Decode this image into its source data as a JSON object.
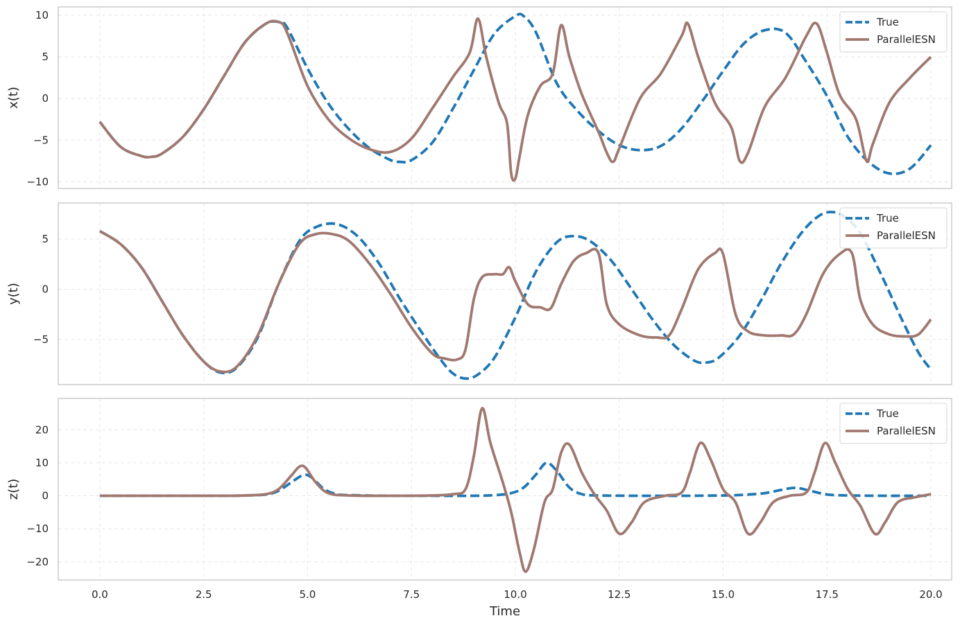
{
  "chart_data": [
    {
      "type": "line",
      "ylabel": "x(t)",
      "xlim": [
        -1.0,
        20.5
      ],
      "ylim": [
        -10.8,
        11.0
      ],
      "yticks": [
        10,
        5,
        0,
        -5,
        -10
      ],
      "ytick_labels": [
        "10",
        "5",
        "0",
        "−5",
        "−10"
      ],
      "grid": true,
      "legend": "top-right",
      "series": [
        {
          "name": "True",
          "style": "dashed",
          "color": "#1f77b4",
          "x": [
            0.0,
            0.5,
            1.0,
            1.25,
            1.5,
            2.0,
            2.5,
            3.0,
            3.5,
            4.0,
            4.3,
            4.5,
            5.0,
            5.5,
            6.0,
            6.5,
            7.0,
            7.2,
            7.5,
            8.0,
            8.5,
            9.0,
            9.5,
            10.0,
            10.2,
            10.5,
            11.0,
            11.5,
            12.0,
            12.5,
            13.0,
            13.5,
            14.0,
            14.5,
            15.0,
            15.5,
            16.0,
            16.5,
            17.0,
            17.5,
            18.0,
            18.5,
            19.0,
            19.5,
            20.0
          ],
          "y": [
            -2.8,
            -5.8,
            -6.9,
            -7.0,
            -6.6,
            -4.6,
            -1.3,
            2.8,
            6.8,
            9.0,
            9.2,
            8.6,
            3.6,
            -0.6,
            -3.7,
            -6.0,
            -7.4,
            -7.6,
            -7.4,
            -5.3,
            -1.2,
            3.4,
            7.8,
            9.9,
            9.9,
            7.9,
            1.8,
            -1.5,
            -3.9,
            -5.6,
            -6.2,
            -5.7,
            -3.6,
            -0.3,
            3.3,
            6.6,
            8.2,
            7.9,
            4.4,
            0.3,
            -4.6,
            -7.6,
            -9.0,
            -8.4,
            -5.6
          ]
        },
        {
          "name": "ParallelESN",
          "style": "solid",
          "color": "#a07870",
          "x": [
            0.0,
            0.5,
            1.0,
            1.25,
            1.5,
            2.0,
            2.5,
            3.0,
            3.5,
            4.0,
            4.3,
            4.5,
            5.0,
            5.5,
            6.0,
            6.5,
            7.0,
            7.5,
            8.0,
            8.5,
            8.9,
            9.1,
            9.3,
            9.6,
            9.8,
            9.9,
            10.0,
            10.1,
            10.3,
            10.6,
            10.9,
            11.1,
            11.3,
            11.6,
            12.0,
            12.2,
            12.35,
            12.5,
            13.0,
            13.5,
            14.0,
            14.15,
            14.4,
            14.8,
            15.2,
            15.4,
            15.6,
            16.0,
            16.5,
            17.0,
            17.25,
            17.5,
            17.8,
            18.2,
            18.45,
            18.6,
            19.0,
            19.5,
            20.0
          ],
          "y": [
            -2.8,
            -5.8,
            -6.9,
            -7.0,
            -6.6,
            -4.6,
            -1.3,
            2.8,
            6.8,
            9.0,
            9.2,
            8.0,
            1.5,
            -2.5,
            -4.8,
            -6.1,
            -6.4,
            -4.8,
            -1.2,
            2.6,
            5.5,
            9.6,
            5.0,
            -0.5,
            -3.0,
            -9.0,
            -9.6,
            -7.0,
            -2.0,
            1.5,
            3.0,
            8.8,
            5.0,
            0.5,
            -4.0,
            -6.5,
            -7.6,
            -6.0,
            0.0,
            3.0,
            7.5,
            9.0,
            5.0,
            -0.5,
            -3.5,
            -7.5,
            -6.5,
            -1.0,
            2.5,
            7.5,
            9.0,
            5.5,
            0.5,
            -2.5,
            -7.5,
            -5.5,
            -0.5,
            2.5,
            5.0
          ]
        }
      ]
    },
    {
      "type": "line",
      "ylabel": "y(t)",
      "xlim": [
        -1.0,
        20.5
      ],
      "ylim": [
        -9.5,
        8.6
      ],
      "yticks": [
        5,
        0,
        -5
      ],
      "ytick_labels": [
        "5",
        "0",
        "−5"
      ],
      "grid": true,
      "legend": "top-right",
      "series": [
        {
          "name": "True",
          "style": "dashed",
          "color": "#1f77b4",
          "x": [
            0.0,
            0.5,
            1.0,
            1.5,
            2.0,
            2.5,
            2.9,
            3.3,
            3.8,
            4.3,
            4.8,
            5.2,
            5.7,
            6.2,
            6.7,
            7.2,
            7.7,
            8.2,
            8.5,
            8.8,
            9.1,
            9.5,
            10.0,
            10.5,
            11.0,
            11.4,
            11.8,
            12.3,
            12.8,
            13.3,
            13.8,
            14.3,
            14.6,
            14.9,
            15.4,
            15.9,
            16.4,
            16.9,
            17.3,
            17.6,
            17.9,
            18.3,
            18.8,
            19.3,
            19.7,
            20.0
          ],
          "y": [
            5.8,
            4.5,
            2.2,
            -1.2,
            -4.6,
            -7.2,
            -8.3,
            -7.8,
            -4.8,
            0.5,
            4.8,
            6.2,
            6.5,
            5.3,
            2.7,
            -0.8,
            -4.0,
            -7.0,
            -8.4,
            -8.9,
            -8.5,
            -6.8,
            -2.8,
            1.8,
            4.7,
            5.3,
            4.8,
            2.9,
            0.0,
            -3.0,
            -5.5,
            -7.1,
            -7.3,
            -6.8,
            -4.6,
            -1.2,
            2.6,
            5.7,
            7.3,
            7.7,
            7.3,
            5.6,
            1.5,
            -3.0,
            -6.3,
            -8.0
          ]
        },
        {
          "name": "ParallelESN",
          "style": "solid",
          "color": "#a07870",
          "x": [
            0.0,
            0.5,
            1.0,
            1.5,
            2.0,
            2.5,
            2.9,
            3.3,
            3.8,
            4.3,
            4.8,
            5.2,
            5.6,
            6.0,
            6.5,
            7.0,
            7.5,
            8.0,
            8.3,
            8.6,
            8.8,
            9.0,
            9.2,
            9.5,
            9.7,
            9.85,
            10.0,
            10.3,
            10.6,
            10.85,
            11.1,
            11.4,
            11.7,
            12.0,
            12.2,
            12.5,
            13.0,
            13.4,
            13.7,
            14.0,
            14.4,
            14.8,
            15.0,
            15.3,
            15.6,
            16.0,
            16.4,
            16.7,
            17.0,
            17.4,
            17.8,
            18.1,
            18.3,
            18.6,
            19.0,
            19.4,
            19.7,
            20.0
          ],
          "y": [
            5.8,
            4.5,
            2.2,
            -1.2,
            -4.6,
            -7.2,
            -8.2,
            -7.7,
            -4.6,
            0.5,
            4.5,
            5.5,
            5.5,
            4.8,
            2.5,
            -0.5,
            -3.8,
            -6.4,
            -6.9,
            -7.0,
            -6.0,
            -1.0,
            1.2,
            1.5,
            1.5,
            2.2,
            0.8,
            -1.5,
            -1.8,
            -1.9,
            0.5,
            2.8,
            3.6,
            3.6,
            -1.5,
            -3.5,
            -4.6,
            -4.8,
            -4.6,
            -2.0,
            2.0,
            3.6,
            3.5,
            -2.5,
            -4.2,
            -4.6,
            -4.6,
            -4.5,
            -2.5,
            1.5,
            3.5,
            3.6,
            -1.0,
            -3.5,
            -4.5,
            -4.7,
            -4.5,
            -3.0
          ]
        }
      ]
    },
    {
      "type": "line",
      "ylabel": "z(t)",
      "xlabel": "Time",
      "xlim": [
        -1.0,
        20.5
      ],
      "ylim": [
        -25.5,
        29.5
      ],
      "yticks": [
        20,
        10,
        0,
        -10,
        -20
      ],
      "ytick_labels": [
        "20",
        "10",
        "0",
        "−10",
        "−20"
      ],
      "xticks": [
        0.0,
        2.5,
        5.0,
        7.5,
        10.0,
        12.5,
        15.0,
        17.5,
        20.0
      ],
      "xtick_labels": [
        "0.0",
        "2.5",
        "5.0",
        "7.5",
        "10.0",
        "12.5",
        "15.0",
        "17.5",
        "20.0"
      ],
      "grid": true,
      "legend": "top-right",
      "series": [
        {
          "name": "True",
          "style": "dashed",
          "color": "#1f77b4",
          "x": [
            0.0,
            1.0,
            2.0,
            3.0,
            3.5,
            4.0,
            4.3,
            4.6,
            4.9,
            5.1,
            5.4,
            5.7,
            6.0,
            7.0,
            8.0,
            9.0,
            9.5,
            9.9,
            10.2,
            10.5,
            10.75,
            11.0,
            11.3,
            11.6,
            12.0,
            13.0,
            14.0,
            15.0,
            15.5,
            16.0,
            16.4,
            16.75,
            17.1,
            17.5,
            18.0,
            19.0,
            20.0
          ],
          "y": [
            0.0,
            0.0,
            0.0,
            0.0,
            0.1,
            0.4,
            1.5,
            4.0,
            6.3,
            5.5,
            2.0,
            0.5,
            0.2,
            0.0,
            0.0,
            0.0,
            0.2,
            0.8,
            2.5,
            6.5,
            10.0,
            7.5,
            2.5,
            0.5,
            0.1,
            0.0,
            0.0,
            0.1,
            0.3,
            0.8,
            1.8,
            2.4,
            1.5,
            0.4,
            0.1,
            0.0,
            0.0
          ]
        },
        {
          "name": "ParallelESN",
          "style": "solid",
          "color": "#a07870",
          "x": [
            0.0,
            1.0,
            2.0,
            3.0,
            3.5,
            4.0,
            4.3,
            4.6,
            4.8,
            4.95,
            5.2,
            5.5,
            6.0,
            7.0,
            8.0,
            8.5,
            8.8,
            9.0,
            9.2,
            9.4,
            9.7,
            9.9,
            10.1,
            10.25,
            10.45,
            10.7,
            10.9,
            11.1,
            11.3,
            11.6,
            11.9,
            12.2,
            12.5,
            12.8,
            13.1,
            13.6,
            14.0,
            14.2,
            14.45,
            14.7,
            15.0,
            15.3,
            15.6,
            15.9,
            16.2,
            16.6,
            17.0,
            17.2,
            17.45,
            17.7,
            18.0,
            18.3,
            18.65,
            18.9,
            19.2,
            19.6,
            20.0
          ],
          "y": [
            0.0,
            0.0,
            0.0,
            0.0,
            0.1,
            0.5,
            2.0,
            6.0,
            8.8,
            8.5,
            4.0,
            0.8,
            0.1,
            0.0,
            0.1,
            0.5,
            2.0,
            12.0,
            26.5,
            16.0,
            4.0,
            -5.0,
            -17.0,
            -23.0,
            -16.0,
            -2.0,
            2.0,
            13.0,
            15.5,
            7.0,
            0.5,
            -4.5,
            -11.5,
            -8.0,
            -2.0,
            0.0,
            1.0,
            7.0,
            16.0,
            11.0,
            2.0,
            -2.0,
            -11.5,
            -8.0,
            -2.0,
            0.0,
            1.0,
            7.0,
            16.0,
            10.0,
            2.0,
            -3.0,
            -11.5,
            -8.0,
            -2.0,
            -0.5,
            0.5
          ]
        }
      ]
    }
  ]
}
